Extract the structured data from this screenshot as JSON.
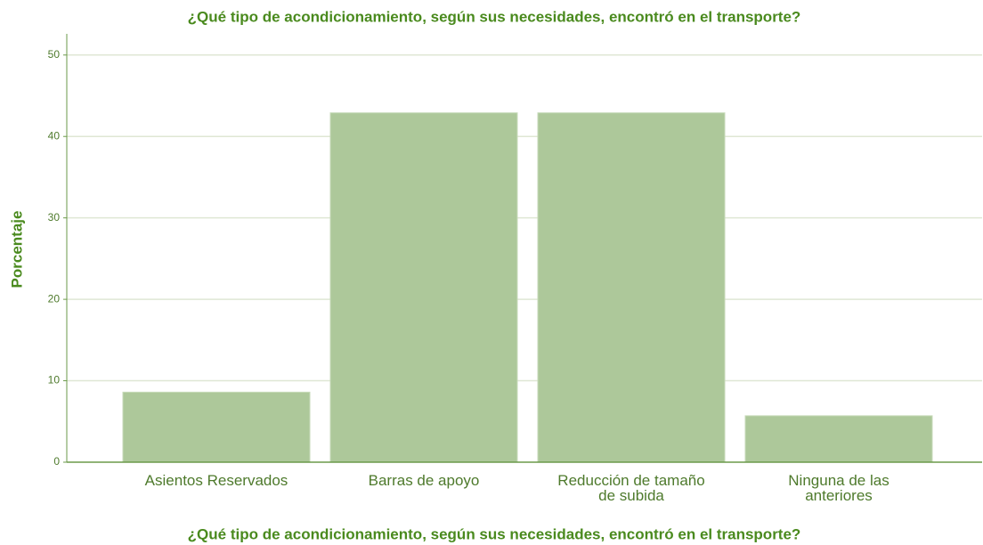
{
  "chart_data": {
    "type": "bar",
    "title": "¿Qué tipo de acondicionamiento, según sus necesidades, encontró en el transporte?",
    "x_label": "¿Qué tipo de acondicionamiento, según sus necesidades, encontró en el transporte?",
    "y_label": "Porcentaje",
    "categories": [
      "Asientos Reservados",
      "Barras de apoyo",
      "Reducción de tamaño\nde subida",
      "Ninguna de las\nanteriores"
    ],
    "values": [
      8.6,
      42.9,
      42.9,
      5.7
    ],
    "color": "#adc89a",
    "ylim": [
      0,
      52.6
    ],
    "yticks": [
      0,
      10,
      20,
      30,
      40,
      50
    ],
    "grid": true
  }
}
